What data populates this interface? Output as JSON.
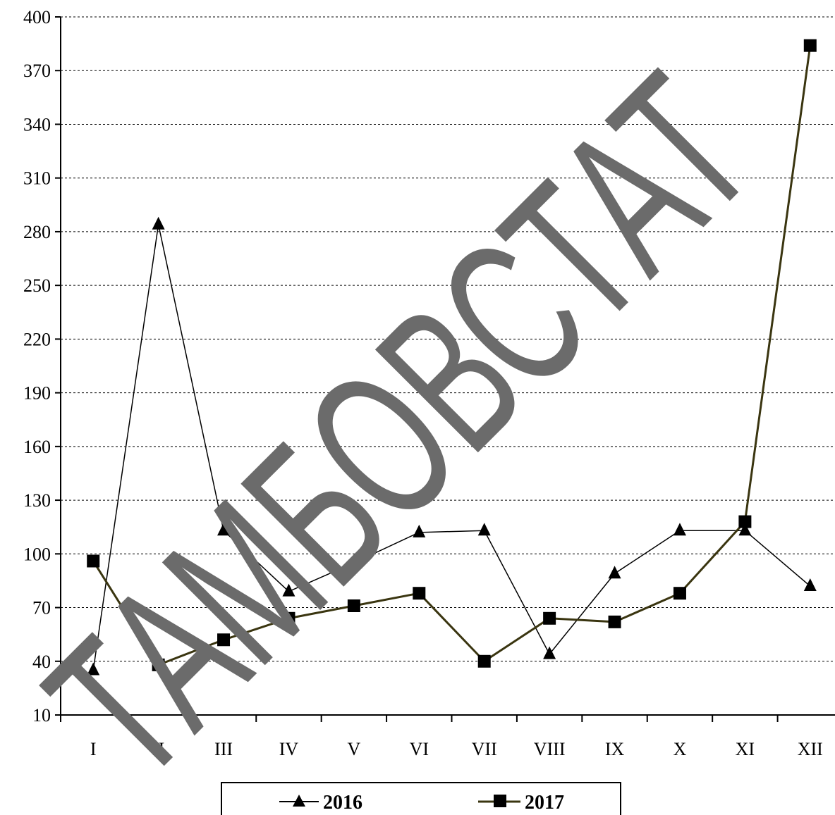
{
  "chart_data": {
    "type": "line",
    "title": "",
    "xlabel": "",
    "ylabel": "",
    "categories": [
      "I",
      "II",
      "III",
      "IV",
      "V",
      "VI",
      "VII",
      "VIII",
      "IX",
      "X",
      "XI",
      "XII"
    ],
    "ylim": [
      10,
      400
    ],
    "yticks": [
      10,
      40,
      70,
      100,
      130,
      160,
      190,
      220,
      250,
      280,
      310,
      340,
      370,
      400
    ],
    "grid": "horizontal-dashed",
    "legend": "bottom-center",
    "series": [
      {
        "name": "2016",
        "marker": "triangle",
        "color": "#000000",
        "values": [
          35,
          284,
          113,
          79,
          95,
          112,
          113,
          44,
          89,
          113,
          113,
          82
        ]
      },
      {
        "name": "2017",
        "marker": "square",
        "color": "#3a3510",
        "values": [
          96,
          38,
          52,
          64,
          71,
          78,
          40,
          64,
          62,
          78,
          118,
          384
        ]
      }
    ]
  },
  "watermark": {
    "text": "ТАМБОВСТАТ",
    "color": "#6b6b6b"
  }
}
